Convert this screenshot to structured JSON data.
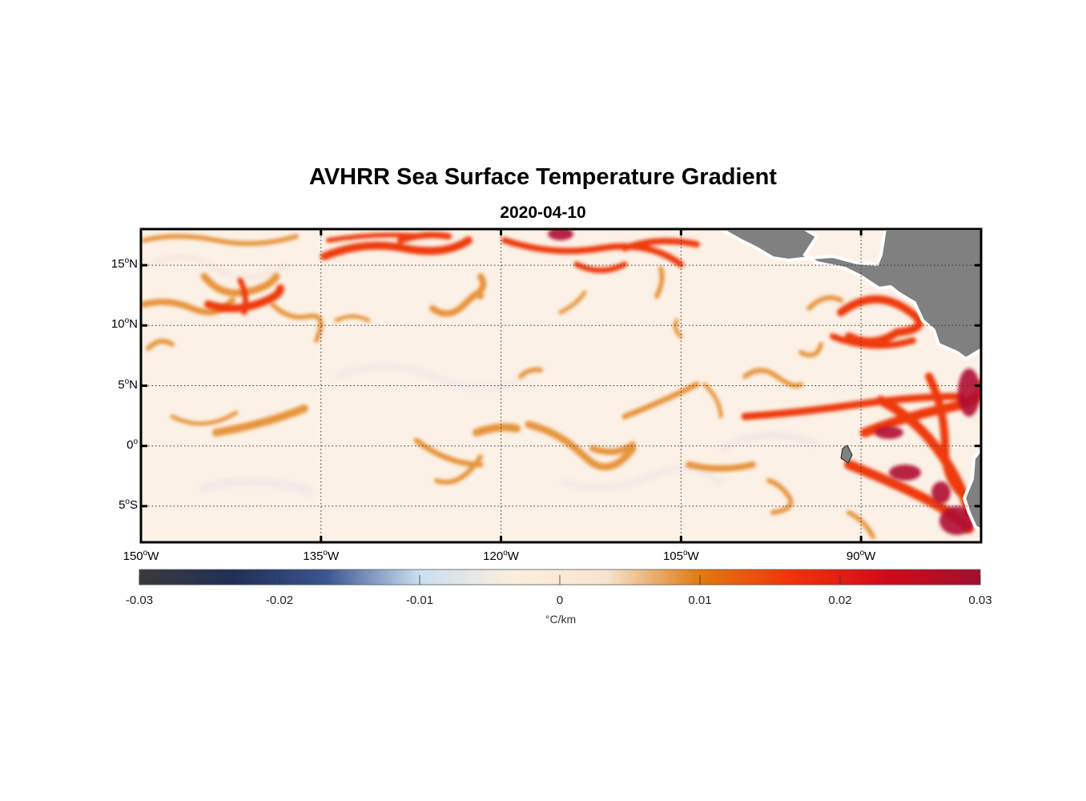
{
  "title": "AVHRR Sea Surface Temperature Gradient",
  "subtitle": "2020-04-10",
  "map": {
    "lon_range": [
      -150,
      -80
    ],
    "lat_range": [
      -8,
      18
    ],
    "x_ticks": [
      {
        "value": -150,
        "label": "150",
        "unit": "W"
      },
      {
        "value": -135,
        "label": "135",
        "unit": "W"
      },
      {
        "value": -120,
        "label": "120",
        "unit": "W"
      },
      {
        "value": -105,
        "label": "105",
        "unit": "W"
      },
      {
        "value": -90,
        "label": "90",
        "unit": "W"
      }
    ],
    "y_ticks": [
      {
        "value": 15,
        "label": "15",
        "unit": "N"
      },
      {
        "value": 10,
        "label": "10",
        "unit": "N"
      },
      {
        "value": 5,
        "label": "5",
        "unit": "N"
      },
      {
        "value": 0,
        "label": "0",
        "unit": ""
      },
      {
        "value": -5,
        "label": "5",
        "unit": "S"
      }
    ],
    "degree_symbol": "o",
    "grid": "dotted",
    "land_color": "#808080"
  },
  "colorbar": {
    "min": -0.03,
    "max": 0.03,
    "ticks": [
      "-0.03",
      "-0.02",
      "-0.01",
      "0",
      "0.01",
      "0.02",
      "0.03"
    ],
    "unit": "°C/km",
    "colors": [
      "#3a3a3a",
      "#1f2f55",
      "#3c5590",
      "#c9dff0",
      "#fbefdc",
      "#f6e4cf",
      "#e07a10",
      "#f2310a",
      "#d10a1a",
      "#a01030"
    ]
  }
}
